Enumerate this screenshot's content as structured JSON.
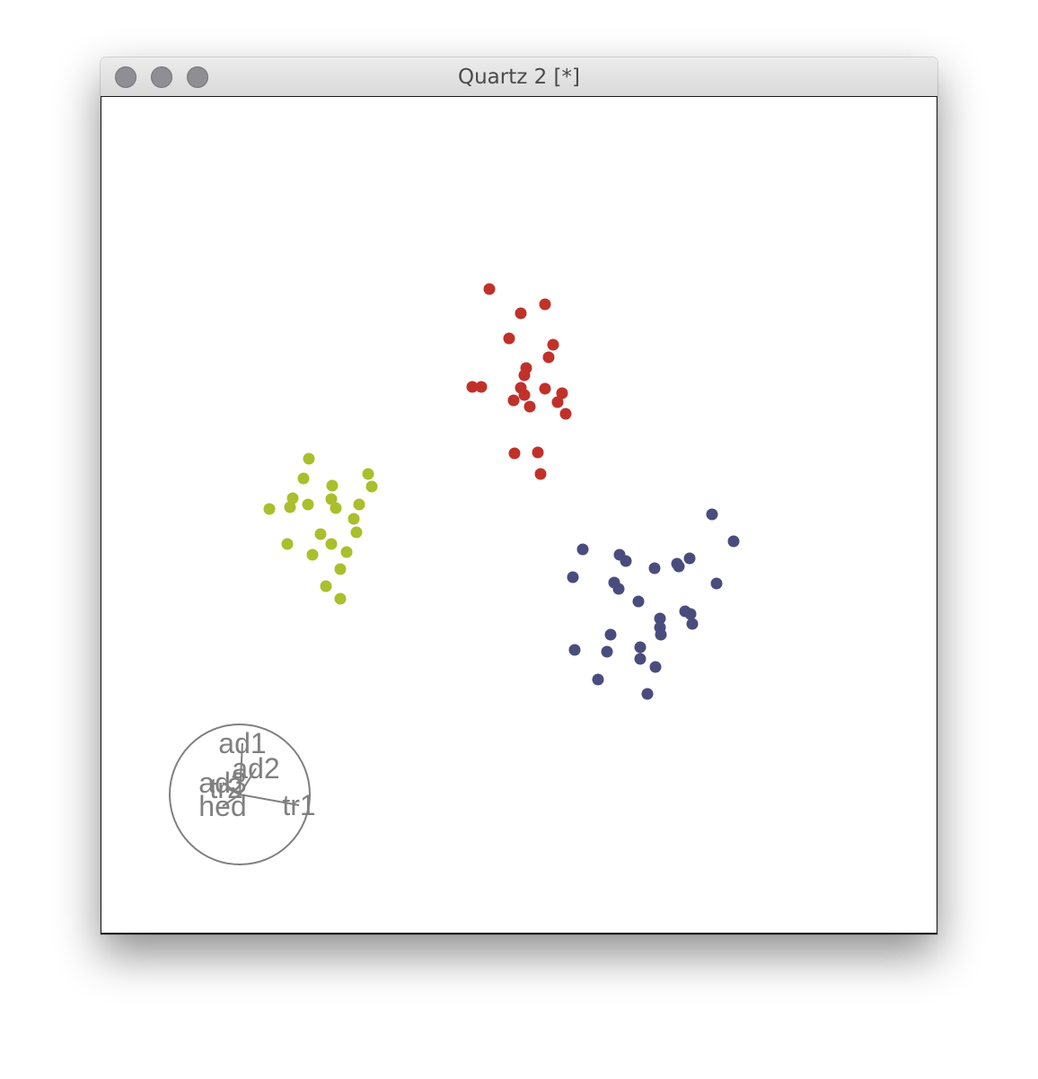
{
  "window": {
    "title": "Quartz 2 [*]"
  },
  "colors": {
    "cluster_a": "#c0312a",
    "cluster_b": "#a9bf2c",
    "cluster_c": "#4a4c7e",
    "biplot": "#808080"
  },
  "chart_data": {
    "type": "scatter",
    "title": "",
    "xlabel": "",
    "ylabel": "",
    "grid": false,
    "axes_visible": false,
    "series": [
      {
        "color": "#c0312a",
        "points": [
          [
            545,
            322
          ],
          [
            580,
            349
          ],
          [
            607,
            339
          ],
          [
            567,
            377
          ],
          [
            616,
            384
          ],
          [
            611,
            398
          ],
          [
            586,
            410
          ],
          [
            584,
            418
          ],
          [
            526,
            431
          ],
          [
            536,
            431
          ],
          [
            580,
            432
          ],
          [
            607,
            433
          ],
          [
            626,
            438
          ],
          [
            584,
            440
          ],
          [
            572,
            446
          ],
          [
            621,
            448
          ],
          [
            590,
            453
          ],
          [
            630,
            461
          ],
          [
            573,
            505
          ],
          [
            599,
            504
          ],
          [
            602,
            528
          ]
        ]
      },
      {
        "color": "#a9bf2c",
        "points": [
          [
            344,
            511
          ],
          [
            338,
            533
          ],
          [
            410,
            528
          ],
          [
            414,
            542
          ],
          [
            370,
            541
          ],
          [
            326,
            555
          ],
          [
            369,
            556
          ],
          [
            343,
            562
          ],
          [
            323,
            565
          ],
          [
            300,
            567
          ],
          [
            374,
            566
          ],
          [
            400,
            562
          ],
          [
            394,
            578
          ],
          [
            397,
            593
          ],
          [
            357,
            595
          ],
          [
            320,
            606
          ],
          [
            369,
            606
          ],
          [
            386,
            615
          ],
          [
            348,
            618
          ],
          [
            379,
            634
          ],
          [
            363,
            653
          ],
          [
            379,
            667
          ]
        ]
      },
      {
        "color": "#4a4c7e",
        "points": [
          [
            793,
            573
          ],
          [
            817,
            603
          ],
          [
            649,
            612
          ],
          [
            690,
            618
          ],
          [
            697,
            625
          ],
          [
            638,
            643
          ],
          [
            729,
            633
          ],
          [
            754,
            628
          ],
          [
            756,
            631
          ],
          [
            768,
            622
          ],
          [
            684,
            649
          ],
          [
            689,
            656
          ],
          [
            798,
            650
          ],
          [
            711,
            670
          ],
          [
            763,
            681
          ],
          [
            769,
            684
          ],
          [
            735,
            689
          ],
          [
            771,
            695
          ],
          [
            735,
            699
          ],
          [
            736,
            707
          ],
          [
            680,
            707
          ],
          [
            713,
            721
          ],
          [
            640,
            724
          ],
          [
            676,
            726
          ],
          [
            713,
            734
          ],
          [
            730,
            743
          ],
          [
            666,
            757
          ],
          [
            721,
            773
          ]
        ]
      }
    ],
    "biplot": {
      "center": [
        267,
        885
      ],
      "radius": 78,
      "vectors": [
        {
          "label": "ad1",
          "end": [
            270,
            828
          ]
        },
        {
          "label": "ad2",
          "end": [
            285,
            856
          ]
        },
        {
          "label": "ad3",
          "end": [
            248,
            872
          ]
        },
        {
          "label": "tr2",
          "end": [
            252,
            878
          ]
        },
        {
          "label": "hed",
          "end": [
            248,
            898
          ]
        },
        {
          "label": "tr1",
          "end": [
            333,
            897
          ]
        }
      ]
    }
  }
}
